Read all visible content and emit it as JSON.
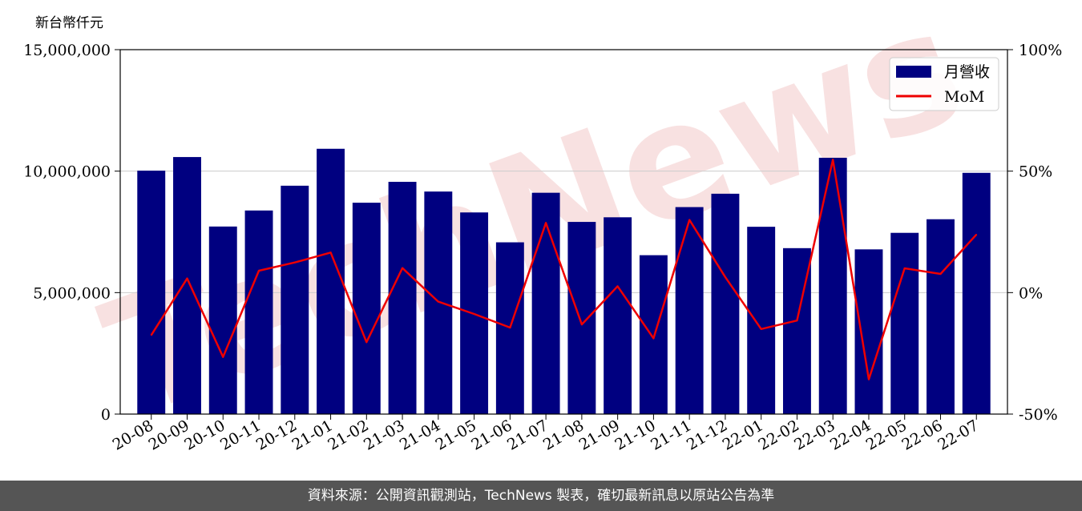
{
  "unit_label": "新台幣仟元",
  "footer_text": "資料來源：公開資訊觀測站，TechNews 製表，確切最新訊息以原站公告為準",
  "watermark": "TechNews",
  "colors": {
    "bar": "#000080",
    "line": "#ee0000",
    "watermark": "#f6d5d5",
    "footer": "#555555"
  },
  "chart_data": {
    "type": "bar",
    "categories": [
      "20-08",
      "20-09",
      "20-10",
      "20-11",
      "20-12",
      "21-01",
      "21-02",
      "21-03",
      "21-04",
      "21-05",
      "21-06",
      "21-07",
      "21-08",
      "21-09",
      "21-10",
      "21-11",
      "21-12",
      "22-01",
      "22-02",
      "22-03",
      "22-04",
      "22-05",
      "22-06",
      "22-07"
    ],
    "series": [
      {
        "name": "月營收",
        "type": "bar",
        "axis": "left",
        "values": [
          10020000,
          10580000,
          7720000,
          8380000,
          9400000,
          10920000,
          8700000,
          9560000,
          9160000,
          8300000,
          7070000,
          9110000,
          7910000,
          8100000,
          6540000,
          8520000,
          9070000,
          7710000,
          6830000,
          10550000,
          6780000,
          7460000,
          8020000,
          9930000
        ]
      },
      {
        "name": "MoM",
        "type": "line",
        "axis": "right",
        "values": [
          -17.5,
          5.8,
          -26.5,
          9.0,
          12.4,
          16.5,
          -20.4,
          10.1,
          -3.7,
          -8.8,
          -14.4,
          28.7,
          -13.1,
          2.6,
          -18.8,
          29.9,
          6.4,
          -15.0,
          -11.5,
          54.7,
          -35.7,
          10.0,
          7.7,
          23.9
        ]
      }
    ],
    "ylim": [
      0,
      15000000
    ],
    "y2lim": [
      -50,
      100
    ],
    "yticks": [
      0,
      5000000,
      10000000,
      15000000
    ],
    "yticklabels": [
      "0",
      "5,000,000",
      "10,000,000",
      "15,000,000"
    ],
    "y2ticks": [
      -50,
      0,
      50,
      100
    ],
    "y2ticklabels": [
      "-50%",
      "0%",
      "50%",
      "100%"
    ],
    "grid": "horizontal",
    "legend": "top-right"
  }
}
